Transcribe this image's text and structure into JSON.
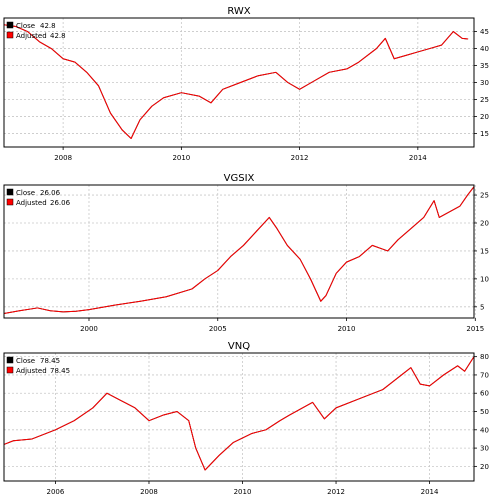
{
  "colors": {
    "close": "#000000",
    "adjusted": "#ff0000",
    "grid": "#c8c8c8",
    "frame": "#000000",
    "background": "#ffffff"
  },
  "chart_data": [
    {
      "type": "line",
      "title": "RWX",
      "grid": true,
      "legend_position": "top-left",
      "xlim": [
        2007.0,
        2014.95
      ],
      "ylim": [
        11,
        49
      ],
      "x_ticks": [
        2008,
        2010,
        2012,
        2014
      ],
      "y_ticks": [
        15,
        20,
        25,
        30,
        35,
        40,
        45
      ],
      "legend": [
        {
          "label": "Close",
          "value": "42.8"
        },
        {
          "label": "Adjusted",
          "value": "42.8"
        }
      ],
      "series": [
        {
          "name": "Close",
          "x": [
            2007.0,
            2007.2,
            2007.4,
            2007.6,
            2007.8,
            2008.0,
            2008.2,
            2008.4,
            2008.6,
            2008.8,
            2009.0,
            2009.15,
            2009.3,
            2009.5,
            2009.7,
            2010.0,
            2010.3,
            2010.5,
            2010.7,
            2011.0,
            2011.3,
            2011.6,
            2011.8,
            2012.0,
            2012.2,
            2012.5,
            2012.8,
            2013.0,
            2013.3,
            2013.45,
            2013.6,
            2013.8,
            2014.0,
            2014.2,
            2014.4,
            2014.6,
            2014.75,
            2014.85
          ],
          "values": [
            47,
            46.5,
            45,
            42,
            40,
            37,
            36,
            33,
            29,
            21,
            16,
            13.5,
            19,
            23,
            25.5,
            27,
            26,
            24,
            28,
            30,
            32,
            33,
            30,
            28,
            30,
            33,
            34,
            36,
            40,
            43,
            37,
            38,
            39,
            40,
            41,
            45,
            43,
            42.8
          ]
        },
        {
          "name": "Adjusted",
          "x": [
            2007.0,
            2007.2,
            2007.4,
            2007.6,
            2007.8,
            2008.0,
            2008.2,
            2008.4,
            2008.6,
            2008.8,
            2009.0,
            2009.15,
            2009.3,
            2009.5,
            2009.7,
            2010.0,
            2010.3,
            2010.5,
            2010.7,
            2011.0,
            2011.3,
            2011.6,
            2011.8,
            2012.0,
            2012.2,
            2012.5,
            2012.8,
            2013.0,
            2013.3,
            2013.45,
            2013.6,
            2013.8,
            2014.0,
            2014.2,
            2014.4,
            2014.6,
            2014.75,
            2014.85
          ],
          "values": [
            47,
            46.5,
            45,
            42,
            40,
            37,
            36,
            33,
            29,
            21,
            16,
            13.5,
            19,
            23,
            25.5,
            27,
            26,
            24,
            28,
            30,
            32,
            33,
            30,
            28,
            30,
            33,
            34,
            36,
            40,
            43,
            37,
            38,
            39,
            40,
            41,
            45,
            43,
            42.8
          ]
        }
      ]
    },
    {
      "type": "line",
      "title": "VGSIX",
      "grid": true,
      "legend_position": "top-left",
      "xlim": [
        1996.7,
        2014.95
      ],
      "ylim": [
        3.0,
        26.8
      ],
      "x_ticks": [
        2000,
        2005,
        2010,
        2015
      ],
      "y_ticks": [
        5,
        10,
        15,
        20,
        25
      ],
      "legend": [
        {
          "label": "Close",
          "value": "26.06"
        },
        {
          "label": "Adjusted",
          "value": "26.06"
        }
      ],
      "series": [
        {
          "name": "Close",
          "x": [
            1996.7,
            1997.3,
            1998.0,
            1998.5,
            1999.0,
            1999.5,
            2000.0,
            2001.0,
            2002.0,
            2003.0,
            2004.0,
            2004.5,
            2005.0,
            2005.5,
            2006.0,
            2006.5,
            2007.0,
            2007.3,
            2007.7,
            2008.2,
            2008.6,
            2009.0,
            2009.2,
            2009.6,
            2010.0,
            2010.5,
            2011.0,
            2011.6,
            2012.0,
            2012.5,
            2013.0,
            2013.4,
            2013.6,
            2014.0,
            2014.4,
            2014.7,
            2014.95
          ],
          "values": [
            3.8,
            4.3,
            4.8,
            4.3,
            4.1,
            4.2,
            4.5,
            5.3,
            6.0,
            6.8,
            8.2,
            10.0,
            11.5,
            14.0,
            16.0,
            18.5,
            21.0,
            19.0,
            16.0,
            13.5,
            10.0,
            6.0,
            7.0,
            11.0,
            13.0,
            14.0,
            16.0,
            15.0,
            17.0,
            19.0,
            21.0,
            24.0,
            21.0,
            22.0,
            23.0,
            25.0,
            26.5
          ]
        },
        {
          "name": "Adjusted",
          "x": [
            1996.7,
            1997.3,
            1998.0,
            1998.5,
            1999.0,
            1999.5,
            2000.0,
            2001.0,
            2002.0,
            2003.0,
            2004.0,
            2004.5,
            2005.0,
            2005.5,
            2006.0,
            2006.5,
            2007.0,
            2007.3,
            2007.7,
            2008.2,
            2008.6,
            2009.0,
            2009.2,
            2009.6,
            2010.0,
            2010.5,
            2011.0,
            2011.6,
            2012.0,
            2012.5,
            2013.0,
            2013.4,
            2013.6,
            2014.0,
            2014.4,
            2014.7,
            2014.95
          ],
          "values": [
            3.8,
            4.3,
            4.8,
            4.3,
            4.1,
            4.2,
            4.5,
            5.3,
            6.0,
            6.8,
            8.2,
            10.0,
            11.5,
            14.0,
            16.0,
            18.5,
            21.0,
            19.0,
            16.0,
            13.5,
            10.0,
            6.0,
            7.0,
            11.0,
            13.0,
            14.0,
            16.0,
            15.0,
            17.0,
            19.0,
            21.0,
            24.0,
            21.0,
            22.0,
            23.0,
            25.0,
            26.5
          ]
        }
      ]
    },
    {
      "type": "line",
      "title": "VNQ",
      "grid": true,
      "legend_position": "top-left",
      "xlim": [
        2004.9,
        2014.95
      ],
      "ylim": [
        12,
        82
      ],
      "x_ticks": [
        2006,
        2008,
        2010,
        2012,
        2014
      ],
      "y_ticks": [
        20,
        30,
        40,
        50,
        60,
        70,
        80
      ],
      "legend": [
        {
          "label": "Close",
          "value": "78.45"
        },
        {
          "label": "Adjusted",
          "value": "78.45"
        }
      ],
      "series": [
        {
          "name": "Close",
          "x": [
            2004.9,
            2005.1,
            2005.5,
            2006.0,
            2006.4,
            2006.8,
            2007.1,
            2007.4,
            2007.7,
            2008.0,
            2008.3,
            2008.6,
            2008.85,
            2009.0,
            2009.2,
            2009.5,
            2009.8,
            2010.2,
            2010.5,
            2010.8,
            2011.0,
            2011.5,
            2011.75,
            2012.0,
            2012.5,
            2013.0,
            2013.4,
            2013.6,
            2013.8,
            2014.0,
            2014.3,
            2014.6,
            2014.75,
            2014.95
          ],
          "values": [
            32,
            34,
            35,
            40,
            45,
            52,
            60,
            56,
            52,
            45,
            48,
            50,
            45,
            30,
            18,
            26,
            33,
            38,
            40,
            45,
            48,
            55,
            46,
            52,
            57,
            62,
            70,
            74,
            65,
            64,
            70,
            75,
            72,
            80
          ]
        },
        {
          "name": "Adjusted",
          "x": [
            2004.9,
            2005.1,
            2005.5,
            2006.0,
            2006.4,
            2006.8,
            2007.1,
            2007.4,
            2007.7,
            2008.0,
            2008.3,
            2008.6,
            2008.85,
            2009.0,
            2009.2,
            2009.5,
            2009.8,
            2010.2,
            2010.5,
            2010.8,
            2011.0,
            2011.5,
            2011.75,
            2012.0,
            2012.5,
            2013.0,
            2013.4,
            2013.6,
            2013.8,
            2014.0,
            2014.3,
            2014.6,
            2014.75,
            2014.95
          ],
          "values": [
            32,
            34,
            35,
            40,
            45,
            52,
            60,
            56,
            52,
            45,
            48,
            50,
            45,
            30,
            18,
            26,
            33,
            38,
            40,
            45,
            48,
            55,
            46,
            52,
            57,
            62,
            70,
            74,
            65,
            64,
            70,
            75,
            72,
            80
          ]
        }
      ]
    }
  ]
}
